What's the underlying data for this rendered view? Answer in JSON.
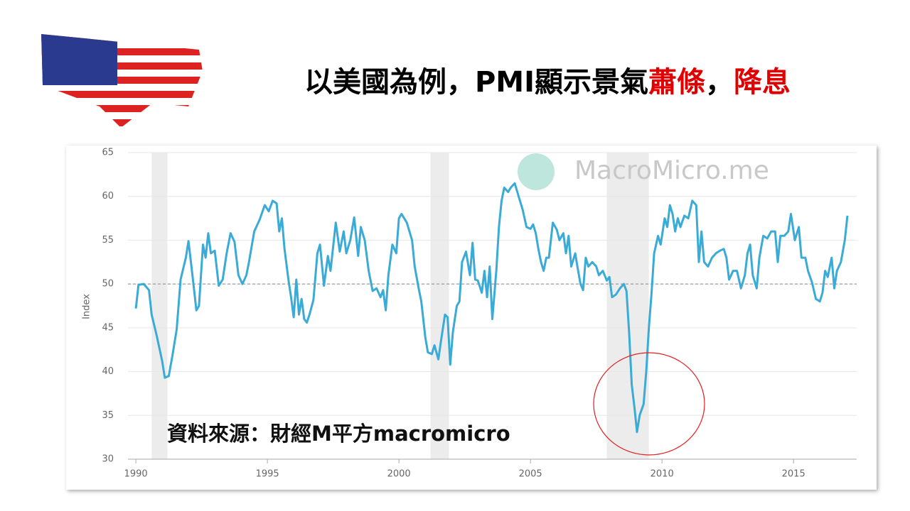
{
  "slide_title": [
    {
      "text": "以美國為例，PMI顯示景氣",
      "color": "#000000"
    },
    {
      "text": "蕭條",
      "color": "#e00000"
    },
    {
      "text": "，",
      "color": "#000000"
    },
    {
      "text": "降息",
      "color": "#e00000"
    }
  ],
  "source_note": "資料來源：財經M平方macromicro",
  "chart_data": {
    "type": "line",
    "watermark": "MacroMicro.me",
    "y_label": "Index",
    "xlim": [
      1989.7,
      2017.4
    ],
    "ylim": [
      30,
      65
    ],
    "xticks": [
      1990,
      1995,
      2000,
      2005,
      2010,
      2015
    ],
    "yticks": [
      30,
      35,
      40,
      45,
      50,
      55,
      60,
      65
    ],
    "grid": true,
    "reference_line": 50,
    "shaded_periods": [
      [
        1990.6,
        1991.2
      ],
      [
        2001.2,
        2001.9
      ],
      [
        2007.9,
        2009.5
      ]
    ],
    "x": [
      1990.0,
      1990.1,
      1990.3,
      1990.5,
      1990.6,
      1990.8,
      1991.0,
      1991.1,
      1991.25,
      1991.4,
      1991.55,
      1991.7,
      1991.9,
      1992.0,
      1992.15,
      1992.3,
      1992.4,
      1992.55,
      1992.65,
      1992.75,
      1992.85,
      1993.0,
      1993.15,
      1993.3,
      1993.45,
      1993.6,
      1993.75,
      1993.9,
      1994.05,
      1994.2,
      1994.3,
      1994.5,
      1994.7,
      1994.9,
      1995.05,
      1995.2,
      1995.35,
      1995.45,
      1995.55,
      1995.65,
      1995.8,
      1995.9,
      1996.0,
      1996.1,
      1996.2,
      1996.3,
      1996.4,
      1996.5,
      1996.6,
      1996.75,
      1996.9,
      1997.0,
      1997.15,
      1997.3,
      1997.4,
      1997.6,
      1997.75,
      1997.9,
      1998.0,
      1998.15,
      1998.3,
      1998.45,
      1998.55,
      1998.7,
      1998.85,
      1999.0,
      1999.15,
      1999.3,
      1999.4,
      1999.5,
      1999.6,
      1999.75,
      1999.9,
      2000.0,
      2000.1,
      2000.3,
      2000.5,
      2000.6,
      2000.75,
      2000.85,
      2001.0,
      2001.1,
      2001.25,
      2001.35,
      2001.5,
      2001.6,
      2001.75,
      2001.85,
      2001.95,
      2002.05,
      2002.2,
      2002.3,
      2002.4,
      2002.55,
      2002.7,
      2002.8,
      2002.9,
      2003.0,
      2003.15,
      2003.25,
      2003.35,
      2003.45,
      2003.55,
      2003.7,
      2003.8,
      2003.9,
      2004.0,
      2004.15,
      2004.25,
      2004.4,
      2004.55,
      2004.7,
      2004.85,
      2005.0,
      2005.1,
      2005.2,
      2005.3,
      2005.4,
      2005.5,
      2005.6,
      2005.7,
      2005.85,
      2006.0,
      2006.1,
      2006.25,
      2006.35,
      2006.45,
      2006.55,
      2006.7,
      2006.8,
      2006.9,
      2007.0,
      2007.1,
      2007.2,
      2007.35,
      2007.5,
      2007.6,
      2007.75,
      2007.9,
      2008.0,
      2008.1,
      2008.25,
      2008.4,
      2008.55,
      2008.65,
      2008.75,
      2008.85,
      2008.95,
      2009.05,
      2009.15,
      2009.3,
      2009.4,
      2009.5,
      2009.6,
      2009.7,
      2009.85,
      2009.95,
      2010.1,
      2010.2,
      2010.3,
      2010.4,
      2010.5,
      2010.6,
      2010.7,
      2010.85,
      2011.0,
      2011.15,
      2011.3,
      2011.4,
      2011.5,
      2011.6,
      2011.75,
      2011.9,
      2012.05,
      2012.2,
      2012.35,
      2012.45,
      2012.55,
      2012.7,
      2012.85,
      2013.0,
      2013.15,
      2013.25,
      2013.35,
      2013.45,
      2013.6,
      2013.7,
      2013.85,
      2014.0,
      2014.15,
      2014.3,
      2014.4,
      2014.5,
      2014.65,
      2014.8,
      2014.9,
      2015.05,
      2015.2,
      2015.3,
      2015.45,
      2015.55,
      2015.7,
      2015.85,
      2016.0,
      2016.1,
      2016.2,
      2016.3,
      2016.45,
      2016.55,
      2016.65,
      2016.8,
      2016.95,
      2017.05
    ],
    "series": [
      {
        "color": "#3aaad6",
        "values": [
          47.2,
          49.9,
          50.0,
          49.3,
          46.5,
          44,
          41.2,
          39.3,
          39.5,
          42,
          44.8,
          50.5,
          53,
          54.9,
          51,
          47,
          47.5,
          54.5,
          53,
          55.8,
          53.5,
          53.8,
          49.8,
          50.5,
          53.5,
          55.8,
          54.8,
          51,
          50,
          51,
          52.5,
          56,
          57.3,
          59,
          58.3,
          59.5,
          59.2,
          56,
          57.5,
          54,
          50.5,
          48.5,
          46.2,
          50.5,
          46.5,
          48.3,
          46,
          45.6,
          46.5,
          48.2,
          53.5,
          54.5,
          49.8,
          53.2,
          51.5,
          57,
          53.7,
          56,
          53.5,
          55,
          57.6,
          53.2,
          56.5,
          55,
          51.5,
          49.2,
          49.5,
          48.5,
          49.3,
          47,
          51,
          54.5,
          53.5,
          57.5,
          58,
          57,
          55,
          52,
          49.5,
          48,
          44,
          42.2,
          42,
          43,
          41.4,
          43.5,
          46.5,
          46.2,
          40.8,
          44.5,
          47.5,
          48,
          52.5,
          53.7,
          51,
          54.7,
          50.5,
          50.4,
          49,
          51.5,
          48.5,
          52,
          46,
          51.5,
          56.5,
          59.5,
          61,
          60.5,
          61,
          61.5,
          60,
          58.5,
          56.5,
          56.3,
          56.8,
          55.8,
          54,
          52.5,
          51.5,
          53,
          53,
          57,
          56.2,
          55,
          55.8,
          53.5,
          55.5,
          52,
          53.5,
          51.7,
          50,
          49.3,
          53,
          52,
          52.5,
          52,
          51,
          51.5,
          50.4,
          50.8,
          48.5,
          48.8,
          49.5,
          50,
          49.2,
          44.5,
          38.5,
          36,
          33.1,
          35,
          36.3,
          40,
          45,
          48.9,
          53.5,
          55.5,
          54.5,
          57.5,
          56.5,
          59,
          58,
          56,
          57.5,
          56.5,
          57.8,
          57.5,
          59.5,
          59,
          52.5,
          56,
          52.5,
          52,
          53,
          53.5,
          53.8,
          54,
          53,
          50.5,
          51.5,
          51.5,
          49.5,
          51,
          53.5,
          54.5,
          51,
          49.5,
          53,
          55.5,
          55.2,
          56,
          56,
          52.5,
          55.5,
          55.5,
          56,
          58,
          55,
          56.5,
          53,
          53,
          51.5,
          50.2,
          48.3,
          48,
          49,
          51.5,
          50.8,
          53,
          49.5,
          51.5,
          52.5,
          55,
          57.8
        ]
      }
    ]
  }
}
